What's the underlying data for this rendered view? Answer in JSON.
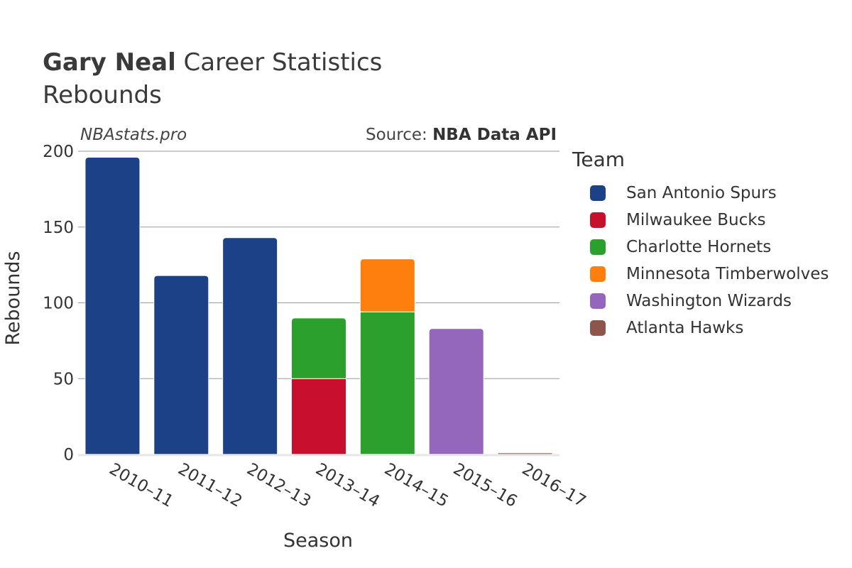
{
  "header": {
    "player_name": "Gary Neal",
    "title_rest": "Career Statistics",
    "subtitle": "Rebounds",
    "watermark": "NBAstats.pro",
    "source_prefix": "Source: ",
    "source_name": "NBA Data API"
  },
  "chart_data": {
    "type": "bar",
    "stacked": true,
    "title": "Gary Neal Career Statistics",
    "subtitle": "Rebounds",
    "xlabel": "Season",
    "ylabel": "Rebounds",
    "ylim": [
      0,
      200
    ],
    "yticks": [
      0,
      50,
      100,
      150,
      200
    ],
    "grid": true,
    "legend_title": "Team",
    "legend_position": "right",
    "categories": [
      "2010–11",
      "2011–12",
      "2012–13",
      "2013–14",
      "2014–15",
      "2015–16",
      "2016–17"
    ],
    "series": [
      {
        "name": "San Antonio Spurs",
        "color": "#1c4187",
        "values": [
          196,
          118,
          143,
          0,
          0,
          0,
          0
        ]
      },
      {
        "name": "Milwaukee Bucks",
        "color": "#c8102e",
        "values": [
          0,
          0,
          0,
          50,
          0,
          0,
          0
        ]
      },
      {
        "name": "Charlotte Hornets",
        "color": "#2ca02c",
        "values": [
          0,
          0,
          0,
          40,
          94,
          0,
          0
        ]
      },
      {
        "name": "Minnesota Timberwolves",
        "color": "#ff7f0e",
        "values": [
          0,
          0,
          0,
          0,
          35,
          0,
          0
        ]
      },
      {
        "name": "Washington Wizards",
        "color": "#9467bd",
        "values": [
          0,
          0,
          0,
          0,
          0,
          83,
          0
        ]
      },
      {
        "name": "Atlanta Hawks",
        "color": "#8c564b",
        "values": [
          0,
          0,
          0,
          0,
          0,
          0,
          1
        ]
      }
    ]
  }
}
